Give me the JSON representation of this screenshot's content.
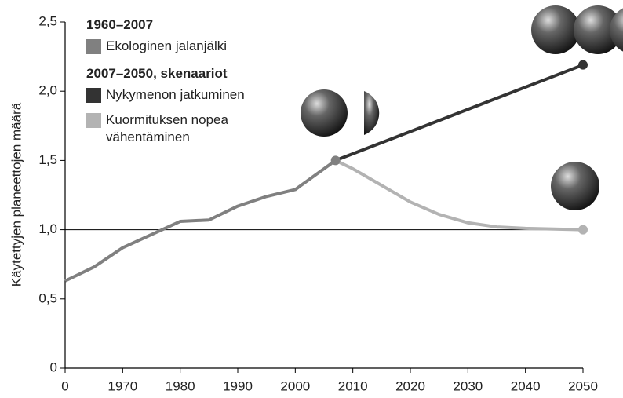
{
  "chart_data": {
    "type": "line",
    "ylabel": "Käytettyjen planeettojen määrä",
    "legend_groups": [
      "1960–2007",
      "2007–2050, skenaariot"
    ],
    "series": [
      {
        "name": "Ekologinen jalanjälki",
        "color": "#808080",
        "x": [
          1960,
          1965,
          1970,
          1980,
          1985,
          1990,
          1995,
          2000,
          2007
        ],
        "values": [
          0.63,
          0.73,
          0.87,
          1.06,
          1.07,
          1.17,
          1.24,
          1.29,
          1.5
        ]
      },
      {
        "name": "Nykymenon jatkuminen",
        "color": "#333333",
        "x": [
          2007,
          2050
        ],
        "values": [
          1.5,
          2.19
        ]
      },
      {
        "name": "Kuormituksen nopea vähentäminen",
        "color": "#b3b3b3",
        "x": [
          2007,
          2010,
          2015,
          2020,
          2025,
          2030,
          2035,
          2040,
          2050
        ],
        "values": [
          1.5,
          1.44,
          1.32,
          1.2,
          1.11,
          1.05,
          1.02,
          1.01,
          1.0
        ]
      }
    ],
    "xlim": [
      1960,
      2050
    ],
    "xticks": [
      {
        "value": 1960,
        "label": "0"
      },
      1970,
      1980,
      1990,
      2000,
      2010,
      2020,
      2030,
      2040,
      2050
    ],
    "ylim": [
      0,
      2.5
    ],
    "yticks": [
      0,
      {
        "value": 0.5,
        "label": "0,5"
      },
      {
        "value": 1,
        "label": "1,0"
      },
      {
        "value": 1.5,
        "label": "1,5"
      },
      {
        "value": 2,
        "label": "2,0"
      },
      {
        "value": 2.5,
        "label": "2,5"
      }
    ],
    "hline": 1,
    "hline_color": "#000000"
  }
}
